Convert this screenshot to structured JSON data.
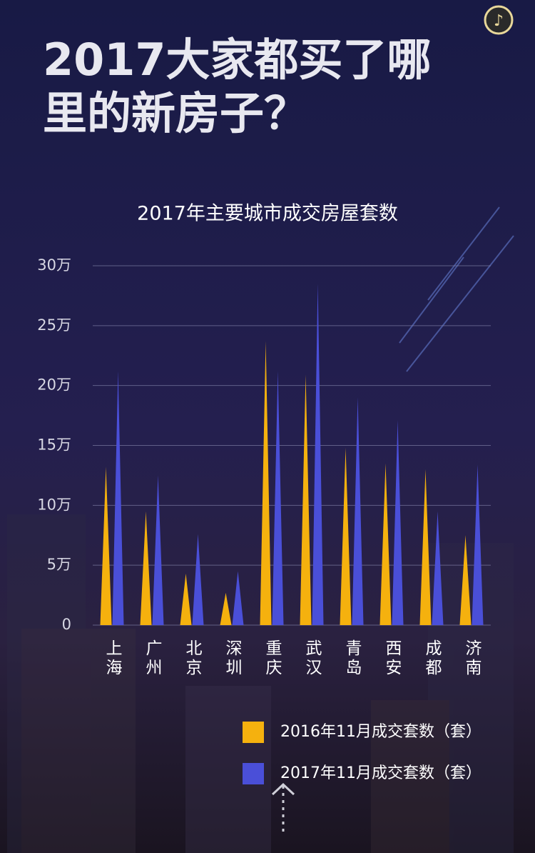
{
  "chart_data": {
    "type": "spike",
    "title_lines": [
      "2017大家都买了哪",
      "里的新房子？"
    ],
    "subtitle": "2017年主要城市成交房屋套数",
    "categories": [
      "上海",
      "广州",
      "北京",
      "深圳",
      "重庆",
      "武汉",
      "青岛",
      "西安",
      "成都",
      "济南"
    ],
    "series": [
      {
        "name": "2016年11月成交套数（套）",
        "color": "#f5b10e",
        "values": [
          13.2,
          9.5,
          4.3,
          2.7,
          23.7,
          20.9,
          14.8,
          13.5,
          13.0,
          7.5
        ]
      },
      {
        "name": "2017年11月成交套数（套）",
        "color": "#4a4fd8",
        "values": [
          21.2,
          12.5,
          7.6,
          4.5,
          21.2,
          28.5,
          19.0,
          17.1,
          9.5,
          13.4
        ]
      }
    ],
    "ylim": [
      0,
      30
    ],
    "yticks": [
      0,
      {
        "value": 5,
        "label": "5万"
      },
      {
        "value": 10,
        "label": "10万"
      },
      {
        "value": 15,
        "label": "15万"
      },
      {
        "value": 20,
        "label": "20万"
      },
      {
        "value": 25,
        "label": "25万"
      },
      {
        "value": 30,
        "label": "30万"
      }
    ],
    "grid": true
  }
}
